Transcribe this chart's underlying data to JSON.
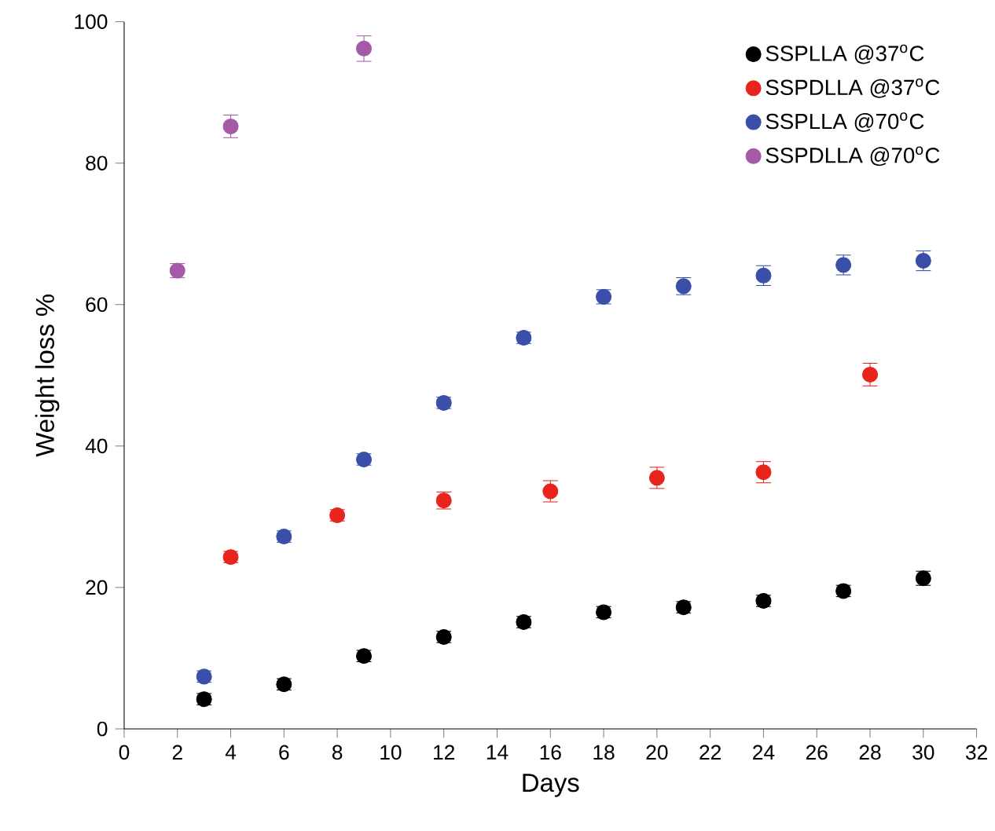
{
  "chart_data": {
    "type": "scatter",
    "xlabel": "Days",
    "ylabel": "Weight loss %",
    "xlim": [
      0,
      32
    ],
    "ylim": [
      0,
      100
    ],
    "xticks": [
      0,
      2,
      4,
      6,
      8,
      10,
      12,
      14,
      16,
      18,
      20,
      22,
      24,
      26,
      28,
      30,
      32
    ],
    "yticks": [
      0,
      20,
      40,
      60,
      80,
      100
    ],
    "legend": "top right",
    "series": [
      {
        "name": "SSPLLA @37$^{o}$C",
        "color": "#000000",
        "x": [
          3,
          6,
          9,
          12,
          15,
          18,
          21,
          24,
          27,
          30
        ],
        "values": [
          4.2,
          6.3,
          10.3,
          13,
          15.1,
          16.5,
          17.2,
          18.1,
          19.5,
          21.3
        ],
        "errors": [
          0.8,
          0.8,
          0.8,
          0.8,
          0.8,
          0.8,
          0.8,
          0.8,
          0.8,
          1
        ]
      },
      {
        "name": "SSPDLLA @37$^{o}$C",
        "color": "#e8251c",
        "x": [
          4,
          8,
          12,
          16,
          20,
          24,
          28
        ],
        "values": [
          24.3,
          30.2,
          32.3,
          33.6,
          35.5,
          36.3,
          50.1
        ],
        "errors": [
          0.8,
          0.8,
          1.2,
          1.5,
          1.5,
          1.5,
          1.6
        ]
      },
      {
        "name": "SSPLLA @70$^{o}$C",
        "color": "#3a4fa8",
        "x": [
          3,
          6,
          9,
          12,
          15,
          18,
          21,
          24,
          27,
          30
        ],
        "values": [
          7.4,
          27.2,
          38.1,
          46.1,
          55.3,
          61.1,
          62.6,
          64.1,
          65.6,
          66.2
        ],
        "errors": [
          0.8,
          0.8,
          0.8,
          0.8,
          0.8,
          1,
          1.2,
          1.4,
          1.4,
          1.4
        ]
      },
      {
        "name": "SSPDLLA @70$^{o}$C",
        "color": "#a55aa8",
        "x": [
          2,
          4,
          9
        ],
        "values": [
          64.8,
          85.2,
          96.2
        ],
        "errors": [
          1,
          1.6,
          1.8
        ]
      }
    ]
  }
}
